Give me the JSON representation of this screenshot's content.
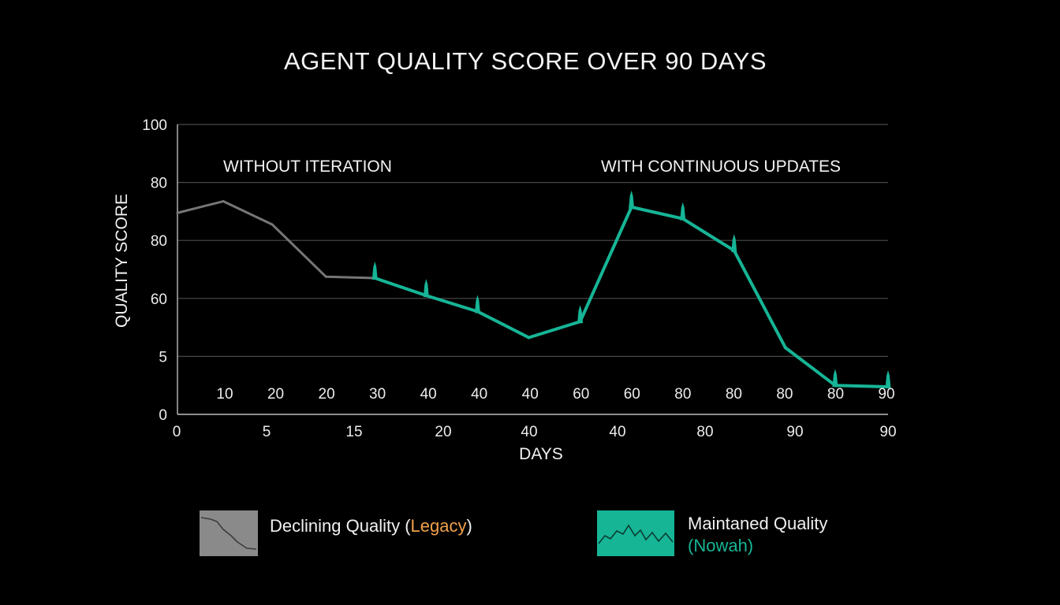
{
  "chart_data": {
    "type": "line",
    "title": "AGENT QUALITY SCORE OVER 90 DAYS",
    "xlabel": "DAYS",
    "ylabel": "QUALITY SCORE",
    "xlim": [
      0,
      90
    ],
    "ylim": [
      0,
      100
    ],
    "y_ticks": [
      "0",
      "5",
      "60",
      "80",
      "80",
      "100"
    ],
    "x_ticks": [
      "0",
      "5",
      "15",
      "20",
      "40",
      "40",
      "80",
      "90",
      "90"
    ],
    "inner_labels": [
      "10",
      "20",
      "20",
      "30",
      "40",
      "40",
      "40",
      "60",
      "60",
      "80",
      "80",
      "80",
      "80",
      "90"
    ],
    "grid": true,
    "legend_placement": "bottom",
    "annotations": [
      "WITHOUT ITERATION",
      "WITH CONTINUOUS UPDATES"
    ],
    "series": [
      {
        "name": "Declining Quality (Legacy)",
        "color": "#767676",
        "points": [
          [
            0,
            69.5
          ],
          [
            5.8,
            73.5
          ],
          [
            12,
            65.5
          ],
          [
            18.8,
            47.5
          ],
          [
            25,
            47
          ]
        ]
      },
      {
        "name": "Maintaned Quality (Nowah)",
        "color": "#16b596",
        "points": [
          [
            25,
            47
          ],
          [
            31.5,
            41
          ],
          [
            38,
            35.5
          ],
          [
            44.5,
            26.5
          ],
          [
            51,
            32
          ],
          [
            57.5,
            71.5
          ],
          [
            64,
            67.5
          ],
          [
            70.5,
            56.5
          ],
          [
            77,
            23
          ],
          [
            83.3,
            10
          ],
          [
            90,
            9.5
          ]
        ],
        "markers": [
          [
            25,
            47
          ],
          [
            31.5,
            41
          ],
          [
            38,
            35.5
          ],
          [
            51,
            32
          ],
          [
            57.5,
            71.5
          ],
          [
            64,
            67.5
          ],
          [
            70.5,
            56.5
          ],
          [
            83.3,
            10
          ],
          [
            90,
            9.5
          ]
        ]
      }
    ]
  },
  "legend": {
    "legacy_prefix": "Declining Quality (",
    "legacy_highlight": "Legacy",
    "legacy_suffix": ")",
    "legacy_highlight_color": "#f0a04b",
    "nowah_line1": "Maintaned Quality",
    "nowah_line2": "(Nowah)",
    "nowah_color": "#16b596"
  }
}
